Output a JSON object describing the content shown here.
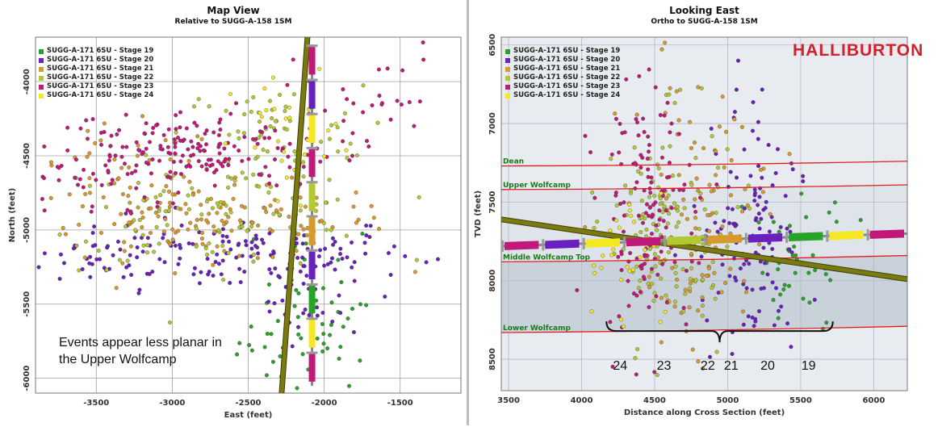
{
  "colors": {
    "stage19": "#27a327",
    "stage20": "#6a1fbf",
    "stage21": "#d89a2a",
    "stage22": "#b4c832",
    "stage23": "#c2187a",
    "stage24": "#f6e820",
    "plane": "#7a7a10",
    "formation_line": "#e02020",
    "logo": "#d2202e"
  },
  "legend": [
    {
      "label": "SUGG-A-171 6SU - Stage 19",
      "color_key": "stage19"
    },
    {
      "label": "SUGG-A-171 6SU - Stage 20",
      "color_key": "stage20"
    },
    {
      "label": "SUGG-A-171 6SU - Stage 21",
      "color_key": "stage21"
    },
    {
      "label": "SUGG-A-171 6SU - Stage 22",
      "color_key": "stage22"
    },
    {
      "label": "SUGG-A-171 6SU - Stage 23",
      "color_key": "stage23"
    },
    {
      "label": "SUGG-A-171 6SU - Stage 24",
      "color_key": "stage24"
    }
  ],
  "chart_data": [
    {
      "type": "scatter",
      "title": "Map View",
      "subtitle": "Relative to SUGG-A-158 1SM",
      "xlabel": "East (feet)",
      "ylabel": "North (feet)",
      "xlim": [
        -3900,
        -1100
      ],
      "ylim": [
        -6100,
        -3700
      ],
      "xticks": [
        -3500,
        -3000,
        -2500,
        -2000,
        -1500
      ],
      "yticks": [
        -4000,
        -4500,
        -5000,
        -5500,
        -6000
      ],
      "grid": true,
      "legend_position": "top-left",
      "annotation": [
        "Events appear less planar in",
        "the Upper Wolfcamp"
      ],
      "plane_line": {
        "x": [
          -2280,
          -2110
        ],
        "y": [
          -6100,
          -3700
        ]
      },
      "well": {
        "x": -2080,
        "y_range": [
          -6050,
          -3750
        ],
        "stage_order_from_north": [
          "stage23",
          "stage20",
          "stage24",
          "stage23",
          "stage22",
          "stage21",
          "stage20",
          "stage19",
          "stage24",
          "stage23"
        ]
      },
      "series": [
        {
          "stage": "stage19",
          "clusters": [
            {
              "x": -2100,
              "y": -5750,
              "sx": 230,
              "sy": 170,
              "n": 45
            },
            {
              "x": -2050,
              "y": -5250,
              "sx": 200,
              "sy": 150,
              "n": 15
            }
          ]
        },
        {
          "stage": "stage20",
          "clusters": [
            {
              "x": -2600,
              "y": -5150,
              "sx": 600,
              "sy": 120,
              "n": 130
            },
            {
              "x": -3500,
              "y": -5180,
              "sx": 250,
              "sy": 90,
              "n": 30
            },
            {
              "x": -2100,
              "y": -5400,
              "sx": 180,
              "sy": 180,
              "n": 35
            }
          ]
        },
        {
          "stage": "stage21",
          "clusters": [
            {
              "x": -2750,
              "y": -4950,
              "sx": 600,
              "sy": 130,
              "n": 150
            },
            {
              "x": -3300,
              "y": -4600,
              "sx": 330,
              "sy": 150,
              "n": 40
            }
          ]
        },
        {
          "stage": "stage22",
          "clusters": [
            {
              "x": -2700,
              "y": -4900,
              "sx": 550,
              "sy": 180,
              "n": 110
            },
            {
              "x": -2350,
              "y": -4350,
              "sx": 300,
              "sy": 160,
              "n": 60
            }
          ]
        },
        {
          "stage": "stage23",
          "clusters": [
            {
              "x": -2900,
              "y": -4450,
              "sx": 500,
              "sy": 130,
              "n": 170
            },
            {
              "x": -3500,
              "y": -4650,
              "sx": 280,
              "sy": 150,
              "n": 40
            },
            {
              "x": -1700,
              "y": -4100,
              "sx": 250,
              "sy": 180,
              "n": 25
            }
          ]
        },
        {
          "stage": "stage24",
          "clusters": [
            {
              "x": -2200,
              "y": -4450,
              "sx": 200,
              "sy": 250,
              "n": 30
            }
          ]
        }
      ]
    },
    {
      "type": "scatter",
      "title": "Looking East",
      "subtitle": "Ortho to SUGG-A-158 1SM",
      "xlabel": "Distance along Cross Section (feet)",
      "ylabel": "TVD (feet)",
      "xlim": [
        3450,
        6230
      ],
      "ylim": [
        8700,
        6450
      ],
      "xticks": [
        3500,
        4000,
        4500,
        5000,
        5500,
        6000
      ],
      "yticks": [
        6500,
        7000,
        7500,
        8000,
        8500
      ],
      "grid": true,
      "legend_position": "top-left",
      "logo_text": "HALLIBURTON",
      "formations": [
        {
          "name": "Dean",
          "tvd_left": 7270,
          "tvd_right": 7240
        },
        {
          "name": "Upper Wolfcamp",
          "tvd_left": 7420,
          "tvd_right": 7390
        },
        {
          "name": "Middle Wolfcamp Top",
          "tvd_left": 7880,
          "tvd_right": 7840
        },
        {
          "name": "Lower Wolfcamp",
          "tvd_left": 8330,
          "tvd_right": 8290
        }
      ],
      "plane_line": {
        "x": [
          3450,
          6230
        ],
        "y": [
          7610,
          7990
        ]
      },
      "well": {
        "tvd_left": 7780,
        "tvd_right": 7700,
        "stage_order_from_left": [
          "stage23",
          "stage20",
          "stage24",
          "stage23",
          "stage22",
          "stage21",
          "stage20",
          "stage19",
          "stage24",
          "stage23"
        ]
      },
      "bracket": {
        "x": [
          4170,
          5720
        ],
        "tvd": 8290
      },
      "stage_numbers": [
        {
          "label": "24",
          "x": 4270
        },
        {
          "label": "23",
          "x": 4570
        },
        {
          "label": "22",
          "x": 4870
        },
        {
          "label": "21",
          "x": 5030
        },
        {
          "label": "20",
          "x": 5280
        },
        {
          "label": "19",
          "x": 5560
        }
      ],
      "series": [
        {
          "stage": "stage19",
          "clusters": [
            {
              "x": 5500,
              "y": 7850,
              "sx": 180,
              "sy": 250,
              "n": 40
            }
          ]
        },
        {
          "stage": "stage20",
          "clusters": [
            {
              "x": 5150,
              "y": 7700,
              "sx": 170,
              "sy": 350,
              "n": 120
            }
          ]
        },
        {
          "stage": "stage21",
          "clusters": [
            {
              "x": 4850,
              "y": 7600,
              "sx": 220,
              "sy": 380,
              "n": 110
            }
          ]
        },
        {
          "stage": "stage22",
          "clusters": [
            {
              "x": 4600,
              "y": 7650,
              "sx": 200,
              "sy": 350,
              "n": 140
            }
          ]
        },
        {
          "stage": "stage23",
          "clusters": [
            {
              "x": 4450,
              "y": 7550,
              "sx": 160,
              "sy": 400,
              "n": 140
            }
          ]
        },
        {
          "stage": "stage24",
          "clusters": [
            {
              "x": 4300,
              "y": 7900,
              "sx": 130,
              "sy": 250,
              "n": 30
            }
          ]
        }
      ]
    }
  ]
}
